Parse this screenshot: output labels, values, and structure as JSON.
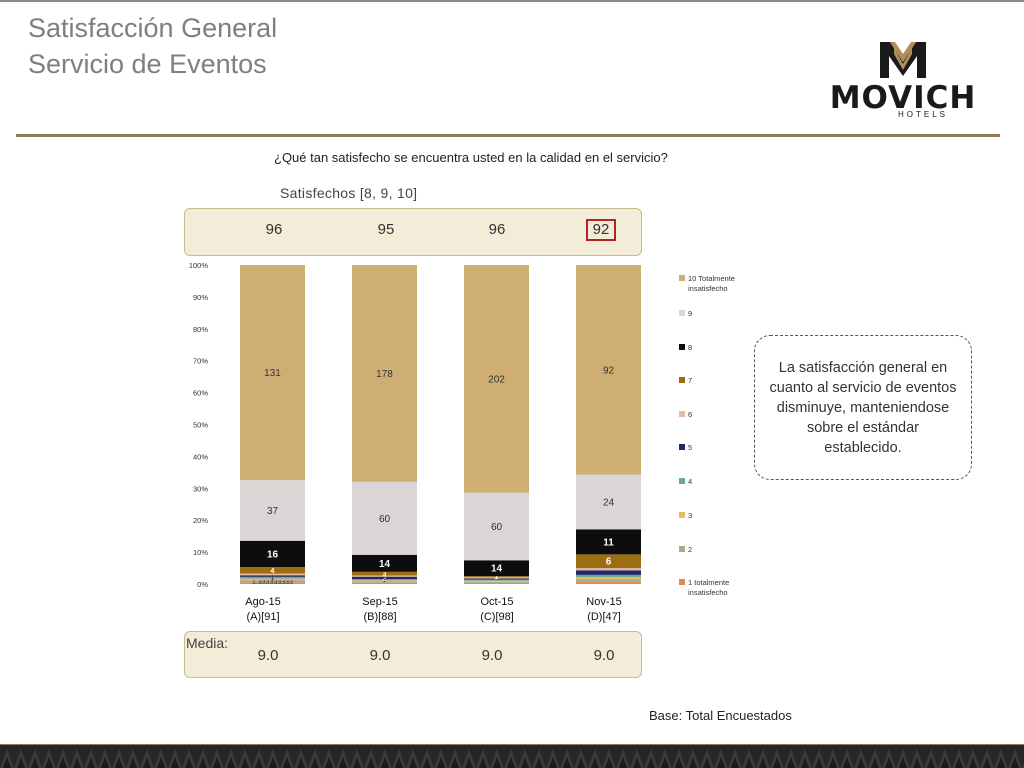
{
  "header": {
    "title_line1": "Satisfacción General",
    "title_line2": "Servicio de Eventos",
    "logo_word": "MOVICH",
    "logo_sub": "HOTELS"
  },
  "question": "¿Qué tan satisfecho se encuentra usted en la calidad en el servicio?",
  "satisfied": {
    "label": "Satisfechos [8, 9, 10]",
    "values": [
      "96",
      "95",
      "96",
      "92"
    ],
    "highlight_index": 3
  },
  "media": {
    "label": "Media:",
    "values": [
      "9.0",
      "9.0",
      "9.0",
      "9.0"
    ]
  },
  "callout": "La satisfacción general en cuanto al servicio de eventos disminuye, manteniendose sobre el estándar establecido.",
  "base_note": "Base: Total Encuestados",
  "colors": {
    "accent_gold": "#8e7a53",
    "box_fill": "#f3ecd9",
    "highlight": "#b22222"
  },
  "chart_data": {
    "type": "bar",
    "stacked": true,
    "normalized": true,
    "categories": [
      "Ago-15",
      "Sep-15",
      "Oct-15",
      "Nov-15"
    ],
    "category_bases": [
      "(A)[91]",
      "(B)[88]",
      "(C)[98]",
      "(D)[47]"
    ],
    "yticks": [
      "0%",
      "10%",
      "20%",
      "30%",
      "40%",
      "50%",
      "60%",
      "70%",
      "80%",
      "90%",
      "100%"
    ],
    "ylim": [
      0,
      100
    ],
    "grid": false,
    "legend_position": "right",
    "series": [
      {
        "name": "1 totalmente insatisfecho",
        "color": "#e08a5a",
        "values": [
          1,
          1,
          1,
          1
        ],
        "labels": [
          "",
          "",
          "",
          ""
        ]
      },
      {
        "name": "2",
        "color": "#a6a98a",
        "values": [
          1.333,
          1,
          1,
          1
        ],
        "labels": [
          "1.333333333",
          "",
          "",
          ""
        ]
      },
      {
        "name": "3",
        "color": "#e6b96a",
        "values": [
          1,
          1,
          1,
          1
        ],
        "labels": [
          "",
          "",
          "",
          ""
        ]
      },
      {
        "name": "4",
        "color": "#6aa89a",
        "values": [
          1,
          1,
          1,
          1
        ],
        "labels": [
          "1",
          "1",
          "",
          ""
        ]
      },
      {
        "name": "5",
        "color": "#1f2a6b",
        "values": [
          1,
          2,
          1,
          2
        ],
        "labels": [
          "",
          "2",
          "",
          ""
        ]
      },
      {
        "name": "6",
        "color": "#e8b8a0",
        "values": [
          1,
          1,
          1,
          1
        ],
        "labels": [
          "",
          "",
          "",
          ""
        ]
      },
      {
        "name": "7",
        "color": "#9c6e12",
        "values": [
          4,
          3,
          1,
          6
        ],
        "labels": [
          "4",
          "3",
          "1",
          "6"
        ]
      },
      {
        "name": "8",
        "color": "#0d0d0d",
        "values": [
          16,
          14,
          14,
          11
        ],
        "labels": [
          "16",
          "14",
          "14",
          "11"
        ]
      },
      {
        "name": "9",
        "color": "#d9d6d5",
        "values": [
          37,
          60,
          60,
          24
        ],
        "labels": [
          "37",
          "60",
          "60",
          "24"
        ]
      },
      {
        "name": "10 Totalmente insatisfecho",
        "color": "#cfae74",
        "values": [
          131,
          178,
          202,
          92
        ],
        "labels": [
          "131",
          "178",
          "202",
          "92"
        ]
      }
    ]
  }
}
